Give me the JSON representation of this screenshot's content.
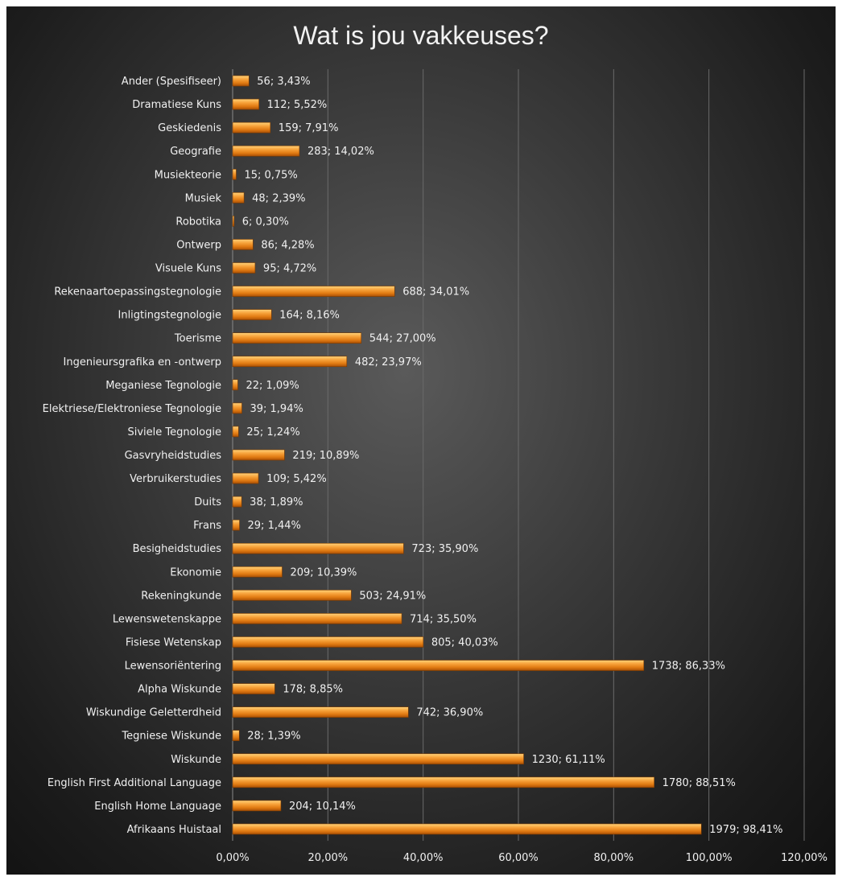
{
  "chart_data": {
    "type": "bar",
    "orientation": "horizontal",
    "title": "Wat is jou vakkeuses?",
    "xlim": [
      0,
      120
    ],
    "x_ticks": [
      "0,00%",
      "20,00%",
      "40,00%",
      "60,00%",
      "80,00%",
      "100,00%",
      "120,00%"
    ],
    "x_tick_values": [
      0,
      20,
      40,
      60,
      80,
      100,
      120
    ],
    "grid": true,
    "bar_color": "#f28c1e",
    "categories": [
      "Ander (Spesifiseer)",
      "Dramatiese Kuns",
      "Geskiedenis",
      "Geografie",
      "Musiekteorie",
      "Musiek",
      "Robotika",
      "Ontwerp",
      "Visuele Kuns",
      "Rekenaartoepassingstegnologie",
      "Inligtingstegnologie",
      "Toerisme",
      "Ingenieursgrafika en -ontwerp",
      "Meganiese Tegnologie",
      "Elektriese/Elektroniese Tegnologie",
      "Siviele Tegnologie",
      "Gasvryheidstudies",
      "Verbruikerstudies",
      "Duits",
      "Frans",
      "Besigheidstudies",
      "Ekonomie",
      "Rekeningkunde",
      "Lewenswetenskappe",
      "Fisiese Wetenskap",
      "Lewensoriëntering",
      "Alpha Wiskunde",
      "Wiskundige Geletterdheid",
      "Tegniese Wiskunde",
      "Wiskunde",
      "English First Additional Language",
      "English Home Language",
      "Afrikaans Huistaal"
    ],
    "values": [
      3.43,
      5.52,
      7.91,
      14.02,
      0.75,
      2.39,
      0.3,
      4.28,
      4.72,
      34.01,
      8.16,
      27.0,
      23.97,
      1.09,
      1.94,
      1.24,
      10.89,
      5.42,
      1.89,
      1.44,
      35.9,
      10.39,
      24.91,
      35.5,
      40.03,
      86.33,
      8.85,
      36.9,
      1.39,
      61.11,
      88.51,
      10.14,
      98.41
    ],
    "data_labels": [
      "56; 3,43%",
      "112; 5,52%",
      "159; 7,91%",
      "283; 14,02%",
      "15; 0,75%",
      "48; 2,39%",
      "6; 0,30%",
      "86; 4,28%",
      "95; 4,72%",
      "688; 34,01%",
      "164; 8,16%",
      "544; 27,00%",
      "482; 23,97%",
      "22; 1,09%",
      "39; 1,94%",
      "25; 1,24%",
      "219; 10,89%",
      "109; 5,42%",
      "38; 1,89%",
      "29; 1,44%",
      "723; 35,90%",
      "209; 10,39%",
      "503; 24,91%",
      "714; 35,50%",
      "805; 40,03%",
      "1738; 86,33%",
      "178; 8,85%",
      "742; 36,90%",
      "28; 1,39%",
      "1230; 61,11%",
      "1780; 88,51%",
      "204; 10,14%",
      "1979; 98,41%"
    ]
  }
}
